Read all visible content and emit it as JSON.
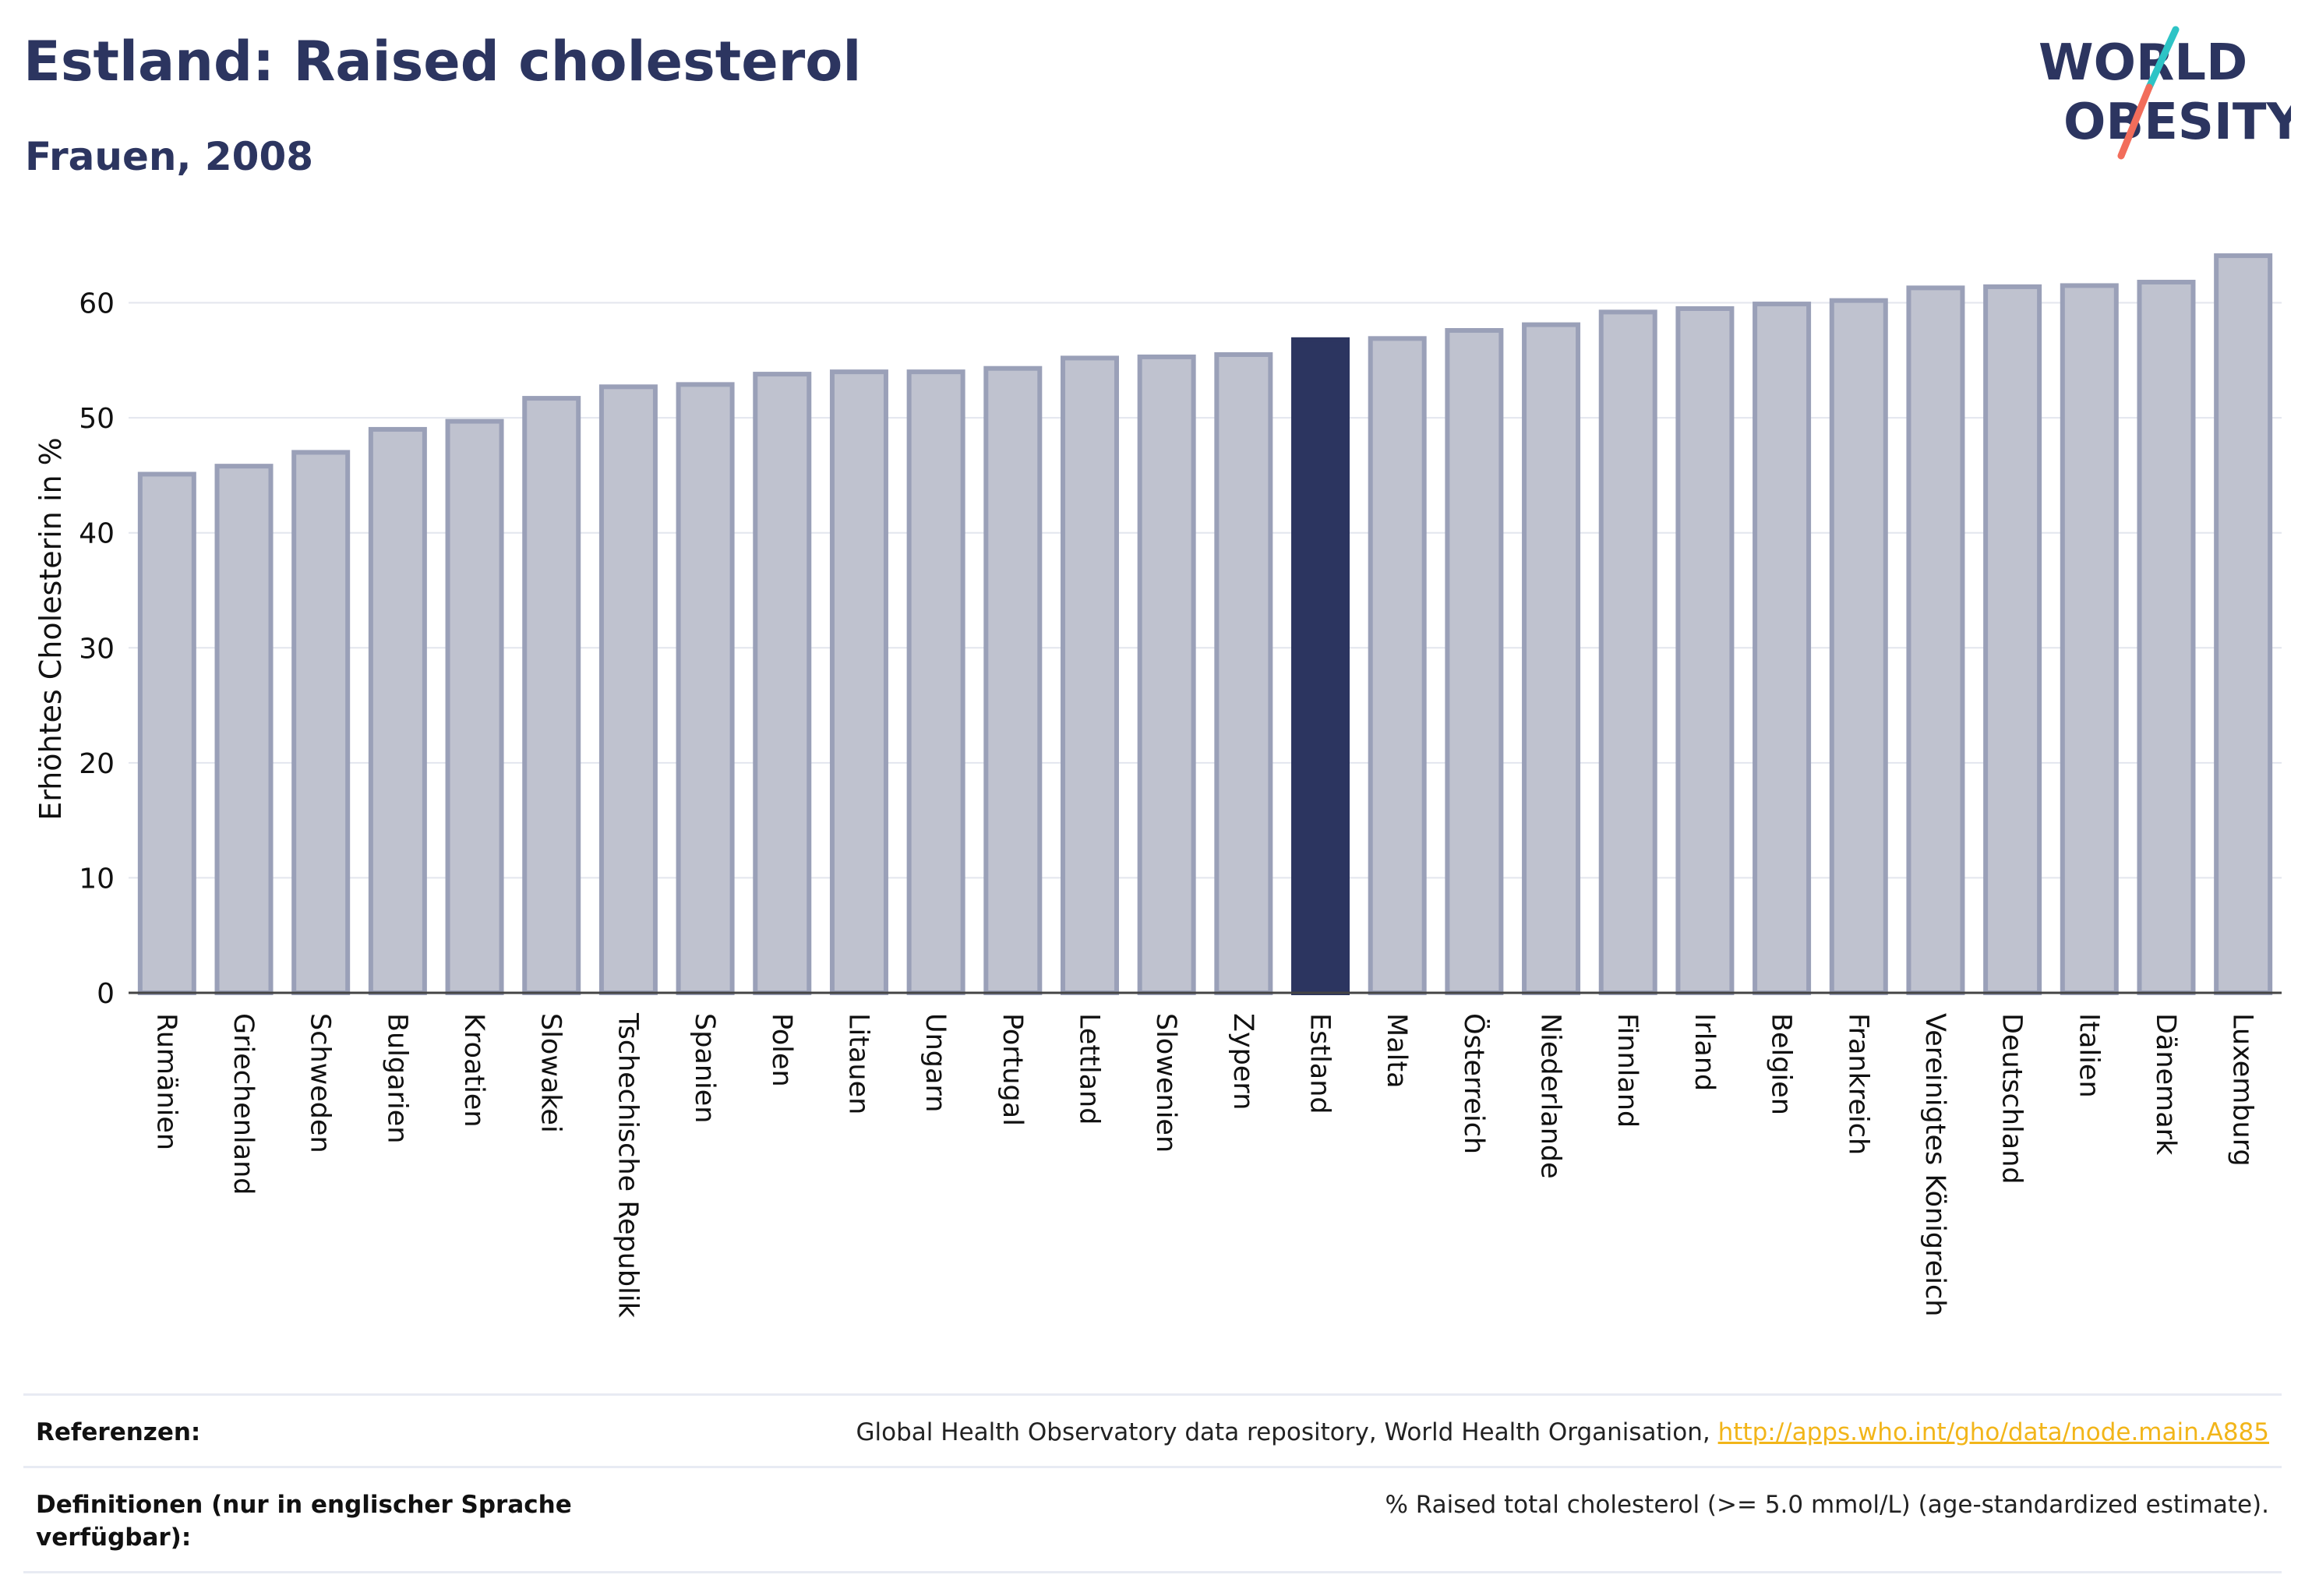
{
  "header": {
    "title": "Estland: Raised cholesterol",
    "subtitle": "Frauen, 2008"
  },
  "logo": {
    "line1": "WORLD",
    "line2": "OBESITY",
    "accent_colors": [
      "#2ec4c6",
      "#f26d5b"
    ]
  },
  "chart_data": {
    "type": "bar",
    "title": "Estland: Raised cholesterol",
    "subtitle": "Frauen, 2008",
    "xlabel": "",
    "ylabel": "Erhöhtes Cholesterin in %",
    "ylim": [
      0,
      66
    ],
    "yticks": [
      0,
      10,
      20,
      30,
      40,
      50,
      60
    ],
    "grid": true,
    "highlight": "Estland",
    "colors": {
      "bar": "#bfc2cf",
      "bar_border": "#9aa0b8",
      "highlight": "#2c3560"
    },
    "categories": [
      "Rumänien",
      "Griechenland",
      "Schweden",
      "Bulgarien",
      "Kroatien",
      "Slowakei",
      "Tschechische Republik",
      "Spanien",
      "Polen",
      "Litauen",
      "Ungarn",
      "Portugal",
      "Lettland",
      "Slowenien",
      "Zypern",
      "Estland",
      "Malta",
      "Österreich",
      "Niederlande",
      "Finnland",
      "Irland",
      "Belgien",
      "Frankreich",
      "Vereinigtes Königreich",
      "Deutschland",
      "Italien",
      "Dänemark",
      "Luxemburg"
    ],
    "values": [
      45.3,
      46.0,
      47.2,
      49.2,
      49.9,
      51.9,
      52.9,
      53.1,
      54.0,
      54.2,
      54.2,
      54.5,
      55.4,
      55.5,
      55.7,
      57.0,
      57.1,
      57.8,
      58.3,
      59.4,
      59.7,
      60.1,
      60.4,
      61.5,
      61.6,
      61.7,
      62.0,
      64.3
    ]
  },
  "footer": {
    "references_label": "Referenzen:",
    "references_text": "Global Health Observatory data repository, World Health Organisation, ",
    "references_link": "http://apps.who.int/gho/data/node.main.A885",
    "definitions_label": "Definitionen (nur in englischer Sprache verfügbar):",
    "definitions_text": "% Raised total cholesterol (>= 5.0 mmol/L) (age-standardized estimate)."
  }
}
